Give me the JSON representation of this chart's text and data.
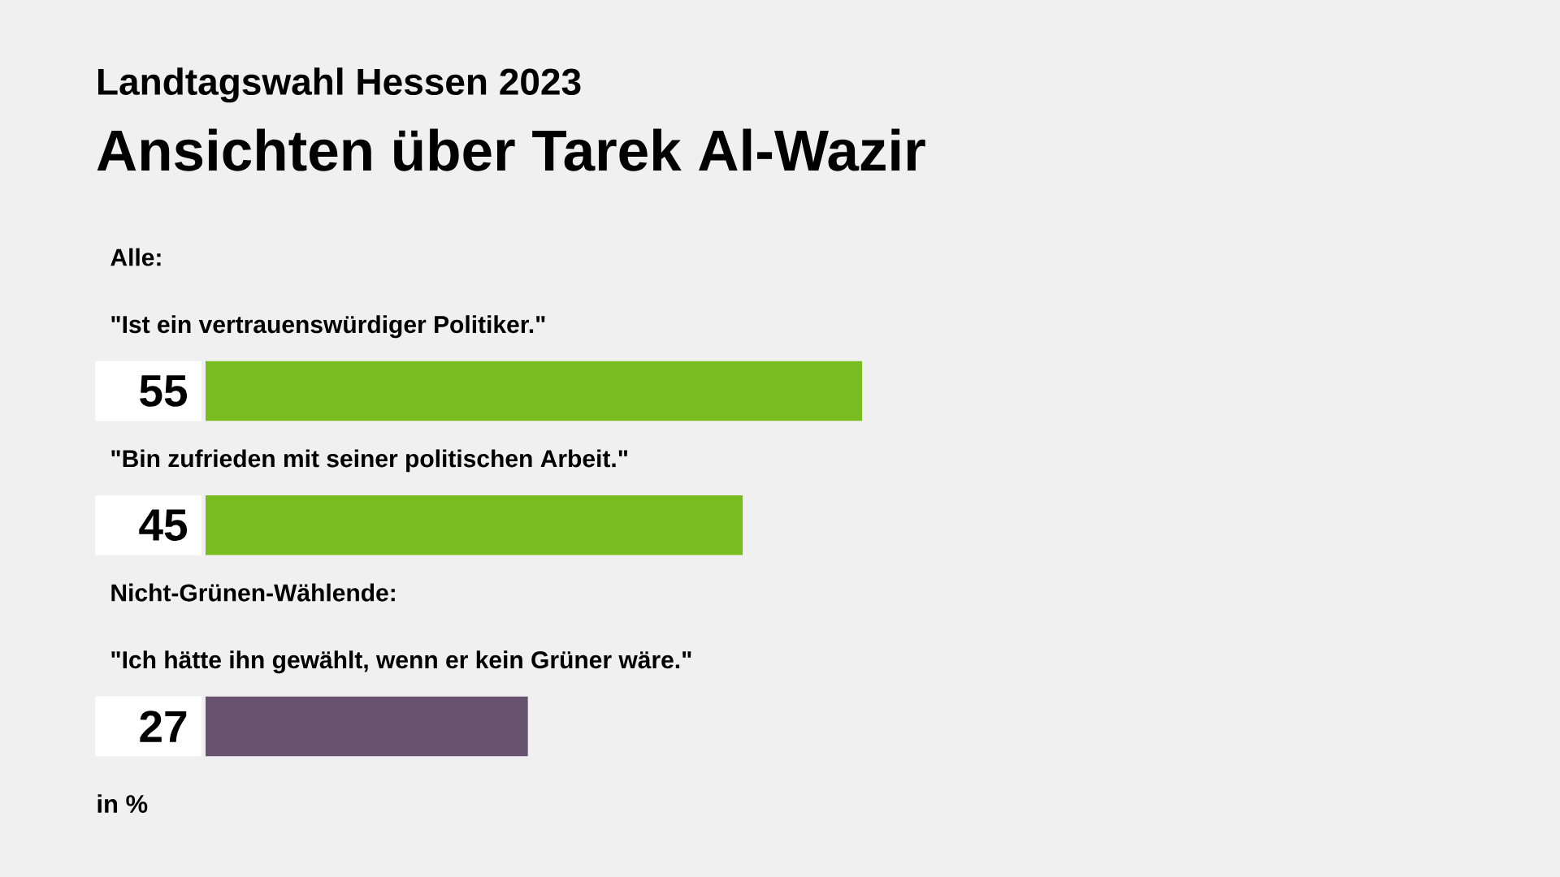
{
  "chart_data": {
    "type": "bar",
    "orientation": "horizontal",
    "subtitle": "Landtagswahl Hessen 2023",
    "title": "Ansichten über Tarek Al-Wazir",
    "categories": [
      "\"Ist ein vertrauenswürdiger Politiker.\"",
      "\"Bin zufrieden mit seiner politischen Arbeit.\"",
      "\"Ich hätte ihn gewählt, wenn er kein Grüner wäre.\""
    ],
    "values": [
      55,
      45,
      27
    ],
    "colors": [
      "#78bc1f",
      "#78bc1f",
      "#67536f"
    ],
    "data_labels": true,
    "tick_labels": "y",
    "annotations": [
      "Alle:",
      "Nicht-Grünen-Wählende:",
      "in %"
    ]
  }
}
